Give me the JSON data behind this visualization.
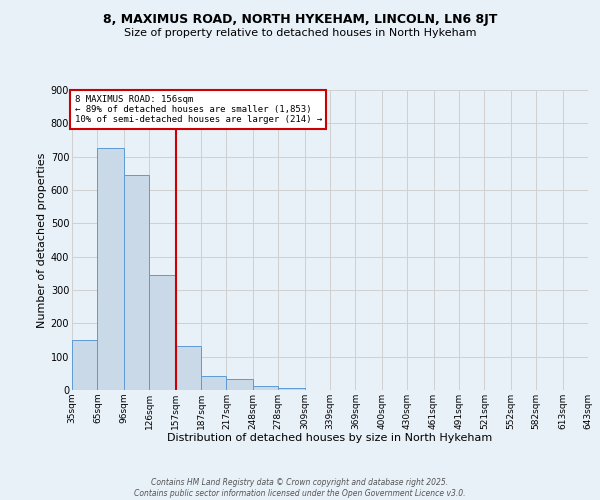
{
  "title": "8, MAXIMUS ROAD, NORTH HYKEHAM, LINCOLN, LN6 8JT",
  "subtitle": "Size of property relative to detached houses in North Hykeham",
  "xlabel": "Distribution of detached houses by size in North Hykeham",
  "ylabel": "Number of detached properties",
  "bar_edges": [
    35,
    65,
    96,
    126,
    157,
    187,
    217,
    248,
    278,
    309,
    339,
    369,
    400,
    430,
    461,
    491,
    521,
    552,
    582,
    613,
    643
  ],
  "bar_heights": [
    150,
    725,
    645,
    345,
    133,
    42,
    32,
    12,
    7,
    0,
    0,
    0,
    0,
    0,
    0,
    0,
    0,
    0,
    0,
    0
  ],
  "bar_color": "#c9d9e8",
  "bar_edge_color": "#5b9bd5",
  "grid_color": "#d0d0d0",
  "bg_color": "#e8f0f8",
  "red_line_x": 157,
  "annotation_text": "8 MAXIMUS ROAD: 156sqm\n← 89% of detached houses are smaller (1,853)\n10% of semi-detached houses are larger (214) →",
  "annotation_box_color": "#ffffff",
  "annotation_box_edge": "#cc0000",
  "ylim": [
    0,
    900
  ],
  "yticks": [
    0,
    100,
    200,
    300,
    400,
    500,
    600,
    700,
    800,
    900
  ],
  "footer": "Contains HM Land Registry data © Crown copyright and database right 2025.\nContains public sector information licensed under the Open Government Licence v3.0.",
  "tick_labels": [
    "35sqm",
    "65sqm",
    "96sqm",
    "126sqm",
    "157sqm",
    "187sqm",
    "217sqm",
    "248sqm",
    "278sqm",
    "309sqm",
    "339sqm",
    "369sqm",
    "400sqm",
    "430sqm",
    "461sqm",
    "491sqm",
    "521sqm",
    "552sqm",
    "582sqm",
    "613sqm",
    "643sqm"
  ]
}
